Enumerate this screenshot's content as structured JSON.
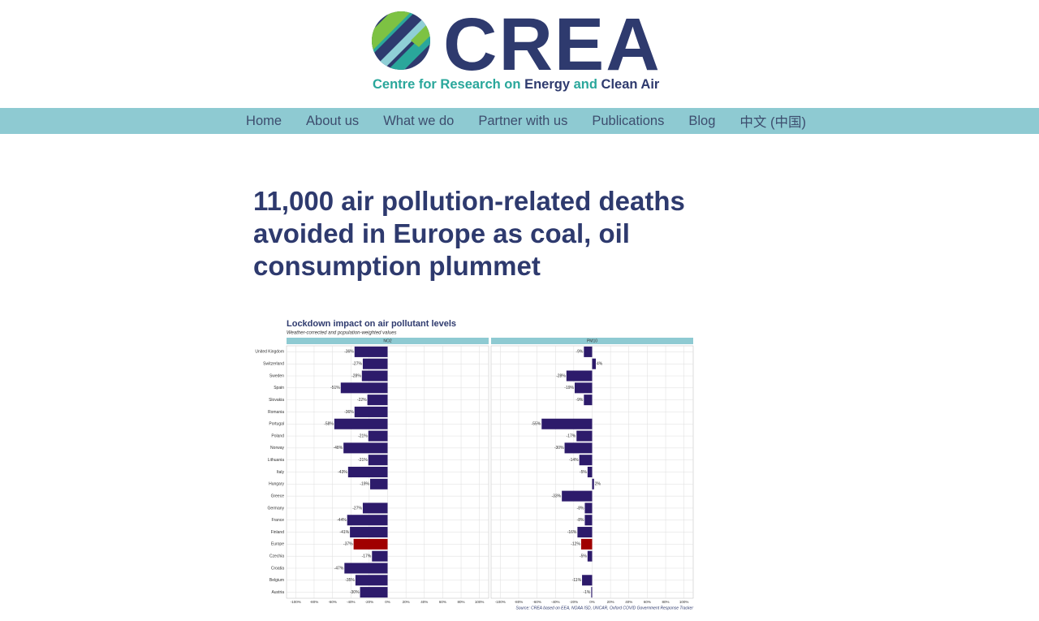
{
  "logo": {
    "name": "CREA",
    "tagline": [
      {
        "text": "Centre for Research on",
        "color": "#2aa79b"
      },
      {
        "text": "Energy",
        "color": "#2e3a6e"
      },
      {
        "text": "and",
        "color": "#2aa79b"
      },
      {
        "text": "Clean Air",
        "color": "#2e3a6e"
      }
    ]
  },
  "nav": [
    "Home",
    "About us",
    "What we do",
    "Partner with us",
    "Publications",
    "Blog",
    "中文 (中国)"
  ],
  "article": {
    "title": "11,000 air pollution-related deaths avoided in Europe as coal, oil consumption plummet"
  },
  "chart_data": {
    "type": "bar",
    "orientation": "horizontal",
    "title": "Lockdown impact on air pollutant levels",
    "subtitle": "Weather-corrected and population-weighted values",
    "source": "Source: CREA based on EEA, NOAA ISD, UNCAR, Oxford COVID Government Response Tracker",
    "categories": [
      "United Kingdom",
      "Switzerland",
      "Sweden",
      "Spain",
      "Slovakia",
      "Romania",
      "Portugal",
      "Poland",
      "Norway",
      "Lithuania",
      "Italy",
      "Hungary",
      "Greece",
      "Germany",
      "France",
      "Finland",
      "Europe",
      "Czechia",
      "Croatia",
      "Belgium",
      "Austria"
    ],
    "bar_colors": [
      "#2d1b6b",
      "#2d1b6b",
      "#2d1b6b",
      "#2d1b6b",
      "#2d1b6b",
      "#2d1b6b",
      "#2d1b6b",
      "#2d1b6b",
      "#2d1b6b",
      "#2d1b6b",
      "#2d1b6b",
      "#2d1b6b",
      "#2d1b6b",
      "#2d1b6b",
      "#2d1b6b",
      "#2d1b6b",
      "#a00000",
      "#2d1b6b",
      "#2d1b6b",
      "#2d1b6b",
      "#2d1b6b"
    ],
    "strip_color": "#8ecad2",
    "xlim": [
      -110,
      110
    ],
    "xticks": [
      {
        "value": -100,
        "label": "-100%"
      },
      {
        "value": -80,
        "label": "-80%"
      },
      {
        "value": -60,
        "label": "-60%"
      },
      {
        "value": -40,
        "label": "-40%"
      },
      {
        "value": -20,
        "label": "-20%"
      },
      {
        "value": 0,
        "label": "0%"
      },
      {
        "value": 20,
        "label": "20%"
      },
      {
        "value": 40,
        "label": "40%"
      },
      {
        "value": 60,
        "label": "60%"
      },
      {
        "value": 80,
        "label": "80%"
      },
      {
        "value": 100,
        "label": "100%"
      }
    ],
    "grid": true,
    "panels": [
      {
        "name": "NO2",
        "values": [
          -36,
          -27,
          -28,
          -51,
          -22,
          -36,
          -58,
          -21,
          -48,
          -21,
          -43,
          -19,
          null,
          -27,
          -44,
          -41,
          -37,
          -17,
          -47,
          -35,
          -30
        ],
        "value_labels": [
          "-36%",
          "-27%",
          "-28%",
          "-51%",
          "-22%",
          "-36%",
          "-58%",
          "-21%",
          "-48%",
          "-21%",
          "-43%",
          "-19%",
          null,
          "-27%",
          "-44%",
          "-41%",
          "-37%",
          "-17%",
          "-47%",
          "-35%",
          "-30%"
        ]
      },
      {
        "name": "PM10",
        "values": [
          -9,
          4,
          -28,
          -19,
          -9,
          null,
          -55,
          -17,
          -30,
          -14,
          -5,
          2,
          -33,
          -8,
          -8,
          -16,
          -12,
          -5,
          null,
          -11,
          -1
        ],
        "value_labels": [
          "-9%",
          "4%",
          "-28%",
          "-19%",
          "-9%",
          null,
          "-55%",
          "-17%",
          "-30%",
          "-14%",
          "-5%",
          "2%",
          "-33%",
          "-8%",
          "-8%",
          "-16%",
          "-12%",
          "-5%",
          null,
          "-11%",
          "-1%"
        ]
      }
    ]
  }
}
